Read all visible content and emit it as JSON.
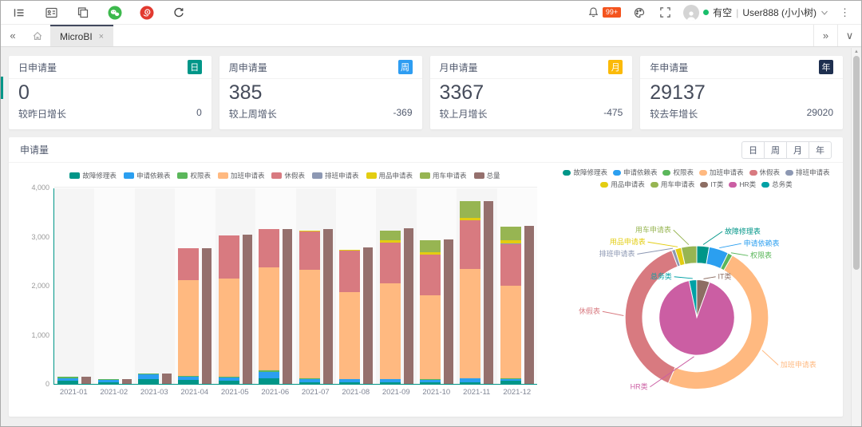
{
  "icons": {
    "collapse_tabs": "«",
    "expand_tabs": "»",
    "caret_down": "∨",
    "kebab": "⋮",
    "tab_close": "×",
    "scroll_up": "▲",
    "pipe": "|"
  },
  "toolbar": {
    "bell_badge": "99+",
    "user_status": "有空",
    "user_name": "User888 (小小树)"
  },
  "tabbar": {
    "active_tab": "MicroBI"
  },
  "stat_cards": [
    {
      "title": "日申请量",
      "badge": "日",
      "badge_color": "#009688",
      "value": "0",
      "footer_label": "较昨日增长",
      "footer_value": "0"
    },
    {
      "title": "周申请量",
      "badge": "周",
      "badge_color": "#2e9df2",
      "value": "385",
      "footer_label": "较上周增长",
      "footer_value": "-369"
    },
    {
      "title": "月申请量",
      "badge": "月",
      "badge_color": "#fbba08",
      "value": "3367",
      "footer_label": "较上月增长",
      "footer_value": "-475"
    },
    {
      "title": "年申请量",
      "badge": "年",
      "badge_color": "#1e2f4f",
      "value": "29137",
      "footer_label": "较去年增长",
      "footer_value": "29020"
    }
  ],
  "panel": {
    "title": "申请量",
    "time_filters": [
      "日",
      "周",
      "月",
      "年"
    ]
  },
  "chart_data": [
    {
      "type": "bar",
      "stacked": true,
      "title": "申请量",
      "categories": [
        "2021-01",
        "2021-02",
        "2021-03",
        "2021-04",
        "2021-05",
        "2021-06",
        "2021-07",
        "2021-08",
        "2021-09",
        "2021-10",
        "2021-11",
        "2021-12"
      ],
      "ylim": [
        0,
        4000
      ],
      "yticks": [
        0,
        1000,
        2000,
        3000,
        4000
      ],
      "ytick_labels": [
        "0",
        "1,000",
        "2,000",
        "3,000",
        "4,000"
      ],
      "legend_position": "top",
      "grid": true,
      "series": [
        {
          "name": "故障修理表",
          "color": "#009688",
          "stack": true,
          "values": [
            60,
            35,
            95,
            80,
            70,
            110,
            40,
            40,
            30,
            25,
            30,
            60
          ]
        },
        {
          "name": "申请依赖表",
          "color": "#2b9ff0",
          "stack": true,
          "values": [
            55,
            40,
            95,
            70,
            60,
            130,
            60,
            55,
            65,
            60,
            80,
            45
          ]
        },
        {
          "name": "权限表",
          "color": "#5bb75b",
          "stack": true,
          "values": [
            25,
            15,
            20,
            10,
            10,
            30,
            20,
            5,
            5,
            5,
            10,
            5
          ]
        },
        {
          "name": "加班申请表",
          "color": "#ffb980",
          "stack": true,
          "values": [
            0,
            0,
            0,
            1960,
            2000,
            2110,
            2210,
            1770,
            1950,
            1710,
            2230,
            1890
          ]
        },
        {
          "name": "休假表",
          "color": "#d87a80",
          "stack": true,
          "values": [
            0,
            0,
            0,
            640,
            890,
            780,
            770,
            850,
            830,
            840,
            980,
            840
          ]
        },
        {
          "name": "排班申请表",
          "color": "#8d98b3",
          "stack": true,
          "values": [
            0,
            0,
            0,
            0,
            0,
            0,
            0,
            0,
            0,
            0,
            0,
            30
          ]
        },
        {
          "name": "用品申请表",
          "color": "#e3cd11",
          "stack": true,
          "values": [
            0,
            0,
            0,
            0,
            0,
            0,
            30,
            20,
            40,
            40,
            50,
            60
          ]
        },
        {
          "name": "用车申请表",
          "color": "#97b552",
          "stack": true,
          "values": [
            0,
            0,
            0,
            0,
            0,
            0,
            0,
            0,
            210,
            240,
            340,
            280
          ]
        },
        {
          "name": "总量",
          "color": "#95706d",
          "stack": false,
          "values": [
            140,
            90,
            210,
            2770,
            3040,
            3160,
            3160,
            2780,
            3170,
            2940,
            3730,
            3220
          ]
        }
      ]
    },
    {
      "type": "pie",
      "legend_position": "top",
      "outer_ring": {
        "start_angle": 0,
        "unit": "percent",
        "segments": [
          {
            "label": "故障修理表",
            "color": "#009688",
            "value": 2.8
          },
          {
            "label": "申请依赖表",
            "color": "#2b9ff0",
            "value": 4.4
          },
          {
            "label": "权限表",
            "color": "#5bb75b",
            "value": 1.1
          },
          {
            "label": "加班申请表",
            "color": "#ffb980",
            "value": 48.2
          },
          {
            "label": "休假表",
            "color": "#d87a80",
            "value": 37.8
          },
          {
            "label": "排班申请表",
            "color": "#8d98b3",
            "value": 0.8
          },
          {
            "label": "用品申请表",
            "color": "#e3cd11",
            "value": 1.4
          },
          {
            "label": "用车申请表",
            "color": "#97b552",
            "value": 3.5
          }
        ]
      },
      "inner_ring": {
        "start_angle": -12,
        "unit": "percent",
        "segments": [
          {
            "label": "总务类",
            "color": "#00a1a5",
            "value": 3.3
          },
          {
            "label": "IT类",
            "color": "#8d6e63",
            "value": 5.6
          },
          {
            "label": "HR类",
            "color": "#cb5ea3",
            "value": 91.1
          }
        ]
      }
    }
  ]
}
